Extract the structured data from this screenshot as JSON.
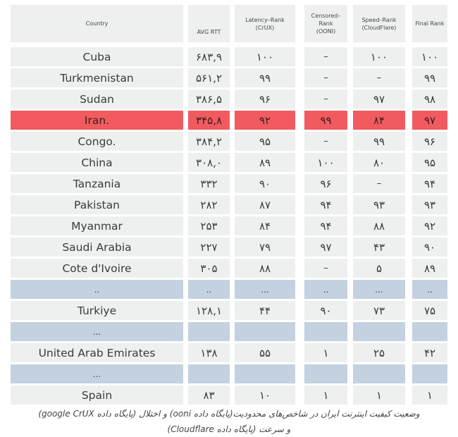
{
  "chart_data": {
    "type": "table",
    "columns": [
      {
        "key": "country",
        "label_lines": [
          "Country"
        ]
      },
      {
        "key": "avg_rtt",
        "label_lines": [
          "AVG RTT"
        ]
      },
      {
        "key": "latency_rank",
        "label_lines": [
          "Latency–Rank",
          "(CrUX)"
        ]
      },
      {
        "key": "censored_rank",
        "label_lines": [
          "Censored–",
          "Rank",
          "(OONI)"
        ]
      },
      {
        "key": "speed_rank",
        "label_lines": [
          "Speed–Rank",
          "(CloudFlare)"
        ]
      },
      {
        "key": "final_rank",
        "label_lines": [
          "Final Rank"
        ]
      }
    ],
    "rows": [
      {
        "country": "Cuba",
        "avg_rtt": "۶۸۳,۹",
        "latency_rank": "۱۰۰",
        "censored_rank": "–",
        "speed_rank": "۱۰۰",
        "final_rank": "۱۰۰",
        "style": "normal"
      },
      {
        "country": "Turkmenistan",
        "avg_rtt": "۵۶۱,۲",
        "latency_rank": "۹۹",
        "censored_rank": "–",
        "speed_rank": "–",
        "final_rank": "۹۹",
        "style": "normal"
      },
      {
        "country": "Sudan",
        "avg_rtt": "۳۸۶,۵",
        "latency_rank": "۹۶",
        "censored_rank": "–",
        "speed_rank": "۹۷",
        "final_rank": "۹۸",
        "style": "normal"
      },
      {
        "country": "Iran.",
        "avg_rtt": "۳۴۵,۸",
        "latency_rank": "۹۲",
        "censored_rank": "۹۹",
        "speed_rank": "۸۴",
        "final_rank": "۹۷",
        "style": "highlight"
      },
      {
        "country": "Congo.",
        "avg_rtt": "۳۸۴,۲",
        "latency_rank": "۹۵",
        "censored_rank": "–",
        "speed_rank": "۹۹",
        "final_rank": "۹۶",
        "style": "normal"
      },
      {
        "country": "China",
        "avg_rtt": "۳۰۸,۰",
        "latency_rank": "۸۹",
        "censored_rank": "۱۰۰",
        "speed_rank": "۸۰",
        "final_rank": "۹۵",
        "style": "normal"
      },
      {
        "country": "Tanzania",
        "avg_rtt": "۳۳۲",
        "latency_rank": "۹۰",
        "censored_rank": "۹۶",
        "speed_rank": "–",
        "final_rank": "۹۴",
        "style": "normal"
      },
      {
        "country": "Pakistan",
        "avg_rtt": "۲۸۲",
        "latency_rank": "۸۷",
        "censored_rank": "۹۴",
        "speed_rank": "۹۳",
        "final_rank": "۹۳",
        "style": "normal"
      },
      {
        "country": "Myanmar",
        "avg_rtt": "۲۵۳",
        "latency_rank": "۸۴",
        "censored_rank": "۹۴",
        "speed_rank": "۸۸",
        "final_rank": "۹۲",
        "style": "normal"
      },
      {
        "country": "Saudi Arabia",
        "avg_rtt": "۲۲۷",
        "latency_rank": "۷۹",
        "censored_rank": "۹۷",
        "speed_rank": "۴۳",
        "final_rank": "۹۰",
        "style": "normal"
      },
      {
        "country": "Cote d'Ivoire",
        "avg_rtt": "۳۰۵",
        "latency_rank": "۸۸",
        "censored_rank": "–",
        "speed_rank": "۵",
        "final_rank": "۸۹",
        "style": "normal"
      },
      {
        "country": "..",
        "avg_rtt": "..",
        "latency_rank": "...",
        "censored_rank": "..",
        "speed_rank": "...",
        "final_rank": "..",
        "style": "gap"
      },
      {
        "country": "Turkiye",
        "avg_rtt": "۱۲۸,۱",
        "latency_rank": "۴۴",
        "censored_rank": "۹۰",
        "speed_rank": "۷۳",
        "final_rank": "۷۵",
        "style": "normal"
      },
      {
        "country": "...",
        "avg_rtt": "",
        "latency_rank": "",
        "censored_rank": "",
        "speed_rank": "",
        "final_rank": "",
        "style": "gap"
      },
      {
        "country": "United Arab Emirates",
        "avg_rtt": "۱۳۸",
        "latency_rank": "۵۵",
        "censored_rank": "۱",
        "speed_rank": "۲۵",
        "final_rank": "۴۲",
        "style": "normal"
      },
      {
        "country": "...",
        "avg_rtt": "",
        "latency_rank": "",
        "censored_rank": "",
        "speed_rank": "",
        "final_rank": "",
        "style": "gap"
      },
      {
        "country": "Spain",
        "avg_rtt": "۸۳",
        "latency_rank": "۱۰",
        "censored_rank": "۱",
        "speed_rank": "۱",
        "final_rank": "۱",
        "style": "normal"
      }
    ],
    "highlight_color": "#f15b5f",
    "gap_color": "#c3d1e0",
    "cell_color": "#eef0f0"
  },
  "caption": {
    "line1": "وضعیت کیفیت اینترنت ایران در شاخص‌های محدودیت(پایگاه داده ooni) و اختلال (پایگاه داده google CrUX)",
    "line2": "و سرعت (پایگاه داده Cloudflare)"
  }
}
